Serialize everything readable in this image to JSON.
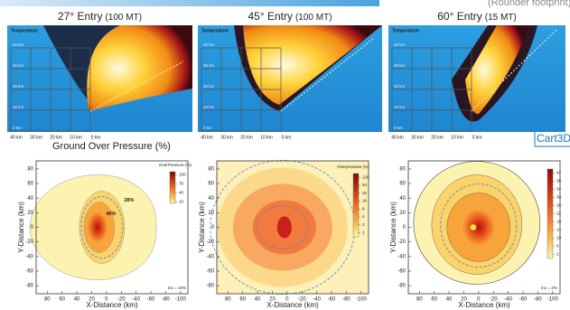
{
  "banner": "(Rounder footprint)",
  "section_label": "Ground Over Pressure (%)",
  "logo": "Cart3D",
  "panels": [
    {
      "title": "27° Entry",
      "energy": "(100 MT)",
      "sim": {
        "label": "Temperature",
        "xticks": [
          "40 km",
          "30 km",
          "20 km",
          "10 km",
          "0 km"
        ],
        "yticks": [
          "40 km",
          "30 km",
          "20 km",
          "10 km",
          "0 km"
        ]
      },
      "plot": {
        "xlabel": "X-Distance (km)",
        "ylabel": "Y-Distance (km)",
        "xlim": [
          95,
          -110
        ],
        "ylim": [
          -91,
          91
        ],
        "xticks": [
          80,
          60,
          40,
          20,
          0,
          -20,
          -40,
          -60,
          -80,
          -100
        ],
        "yticks": [
          80,
          60,
          40,
          20,
          0,
          -20,
          -40,
          -60,
          -80
        ],
        "colorbar": {
          "title": "OverPressure (%)",
          "lim": [
            5,
            110
          ],
          "log": false,
          "ticks": [
            100,
            70,
            40,
            10
          ]
        },
        "annotations": [
          "28%",
          "40%",
          "Inc = 10%"
        ]
      }
    },
    {
      "title": "45° Entry",
      "energy": "(100 MT)",
      "sim": {
        "label": "Temperature",
        "xticks": [
          "40 km",
          "30 km",
          "20 km",
          "10 km",
          "0 km"
        ],
        "yticks": [
          "40 km",
          "30 km",
          "20 km",
          "10 km",
          "0 km"
        ]
      },
      "plot": {
        "xlabel": "X-Distance (km)",
        "ylabel": "Y-Distance (km)",
        "xlim": [
          95,
          -110
        ],
        "ylim": [
          -91,
          91
        ],
        "xticks": [
          80,
          60,
          40,
          20,
          0,
          -20,
          -40,
          -60,
          -80,
          -100
        ],
        "yticks": [
          80,
          60,
          40,
          20,
          0,
          -20,
          -40,
          -60,
          -80
        ],
        "colorbar": {
          "title": "Overpressure (%)",
          "lim": [
            0.7,
            180
          ],
          "log": true,
          "ticks": [
            128,
            64,
            32,
            16,
            8,
            4,
            2,
            1
          ]
        },
        "annotations": []
      }
    },
    {
      "title": "60° Entry",
      "energy": "(15 MT)",
      "sim": {
        "label": "Temperature",
        "xticks": [
          "40 km",
          "30 km",
          "20 km",
          "10 km",
          "0 km"
        ],
        "yticks": [
          "40 km",
          "30 km",
          "20 km",
          "10 km",
          "0 km"
        ]
      },
      "plot": {
        "xlabel": "X-Distance (km)",
        "ylabel": "Y-Distance (km)",
        "xlim": [
          95,
          -110
        ],
        "ylim": [
          -91,
          91
        ],
        "xticks": [
          80,
          60,
          40,
          20,
          0,
          -20,
          -40,
          -60,
          -80,
          -100
        ],
        "yticks": [
          80,
          60,
          40,
          20,
          0,
          -20,
          -40,
          -60,
          -80
        ],
        "colorbar": {
          "lim": [
            0,
            44
          ],
          "log": false,
          "ticks": [
            42,
            38,
            34,
            30,
            26,
            22,
            18,
            14,
            10,
            6,
            2
          ]
        },
        "annotations": [
          "Inc = 2%"
        ]
      }
    }
  ]
}
